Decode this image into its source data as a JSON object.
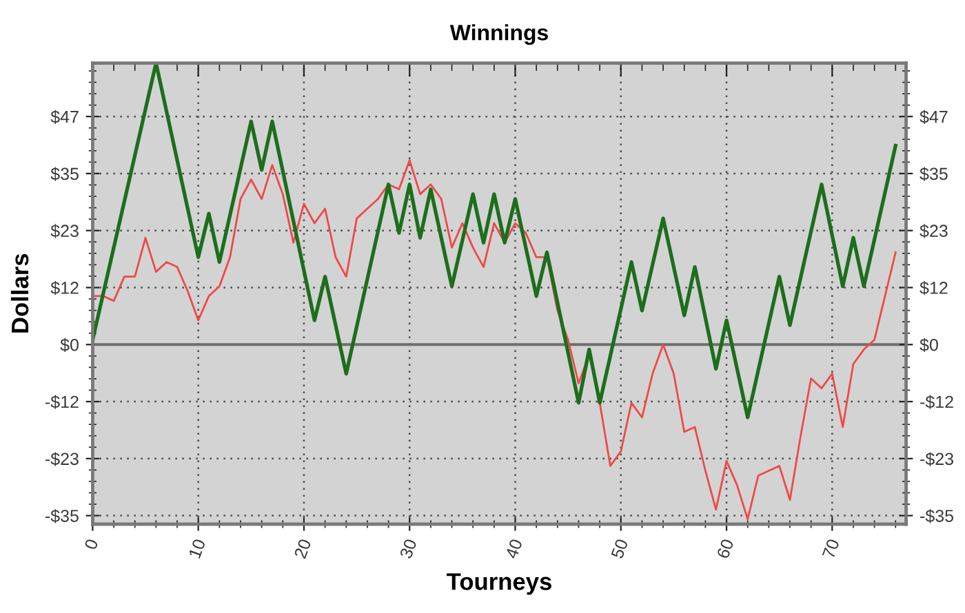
{
  "chart_data": {
    "type": "line",
    "title": "Winnings",
    "xlabel": "Tourneys",
    "ylabel": "Dollars",
    "xlim": [
      0,
      77
    ],
    "xticks": [
      0,
      10,
      20,
      30,
      40,
      50,
      60,
      70
    ],
    "ylim": [
      -37,
      58
    ],
    "yticks": [
      {
        "value": -35.25,
        "label": "-$35"
      },
      {
        "value": -23.5,
        "label": "-$23"
      },
      {
        "value": -11.75,
        "label": "-$12"
      },
      {
        "value": 0,
        "label": "$0"
      },
      {
        "value": 11.75,
        "label": "$12"
      },
      {
        "value": 23.5,
        "label": "$23"
      },
      {
        "value": 35.25,
        "label": "$35"
      },
      {
        "value": 47,
        "label": "$47"
      }
    ],
    "y2lim": [
      -37,
      58
    ],
    "y2ticks": [
      {
        "value": -35.25,
        "label": "-$35"
      },
      {
        "value": -23.5,
        "label": "-$23"
      },
      {
        "value": -11.75,
        "label": "-$12"
      },
      {
        "value": 0,
        "label": "$0"
      },
      {
        "value": 11.75,
        "label": "$12"
      },
      {
        "value": 23.5,
        "label": "$23"
      },
      {
        "value": 35.25,
        "label": "$35"
      },
      {
        "value": 47,
        "label": "$47"
      }
    ],
    "grid": true,
    "ref_lines": [
      {
        "axis": "y",
        "value": 0,
        "color": "#6e6e6e"
      }
    ],
    "series": [
      {
        "color": "#f04848",
        "x": [
          0,
          1,
          2,
          3,
          4,
          5,
          6,
          7,
          8,
          9,
          10,
          11,
          12,
          13,
          14,
          15,
          16,
          17,
          18,
          19,
          20,
          21,
          22,
          23,
          24,
          25,
          26,
          27,
          28,
          29,
          30,
          31,
          32,
          33,
          34,
          35,
          36,
          37,
          38,
          39,
          40,
          41,
          42,
          43,
          44,
          45,
          46,
          47,
          48,
          49,
          50,
          51,
          52,
          53,
          54,
          55,
          56,
          57,
          58,
          59,
          60,
          61,
          62,
          63,
          64,
          65,
          66,
          67,
          68,
          69,
          70,
          71,
          72,
          73,
          74,
          75,
          76
        ],
        "values": [
          10,
          10,
          9,
          14,
          14,
          22,
          15,
          17,
          16,
          11,
          5,
          10,
          12,
          18,
          30,
          34,
          30,
          37,
          31,
          21,
          29,
          25,
          28,
          18,
          14,
          26,
          28,
          30,
          33,
          32,
          38,
          31,
          33,
          30,
          20,
          25,
          20,
          16,
          25,
          21,
          25,
          23,
          18,
          18,
          7,
          1,
          -8,
          -2,
          -12,
          -25,
          -22,
          -12,
          -15,
          -6,
          0,
          -6,
          -18,
          -17,
          -26,
          -34,
          -24,
          -29,
          -36,
          -27,
          -26,
          -25,
          -32,
          -19,
          -7,
          -9,
          -6,
          -17,
          -4,
          -1,
          1,
          10,
          19
        ]
      },
      {
        "color": "#1c6e1c",
        "x": [
          0,
          6,
          10,
          11,
          12,
          15,
          16,
          17,
          21,
          22,
          24,
          28,
          29,
          30,
          31,
          32,
          34,
          36,
          37,
          38,
          39,
          40,
          42,
          43,
          46,
          47,
          48,
          51,
          52,
          54,
          56,
          57,
          59,
          60,
          62,
          65,
          66,
          69,
          71,
          72,
          73,
          76
        ],
        "values": [
          1,
          58,
          18,
          27,
          17,
          46,
          36,
          46,
          5,
          14,
          -6,
          33,
          23,
          33,
          22,
          32,
          12,
          31,
          21,
          31,
          21,
          30,
          10,
          19,
          -12,
          -1,
          -12,
          17,
          7,
          26,
          6,
          16,
          -5,
          5,
          -15,
          14,
          4,
          33,
          12,
          22,
          12,
          41
        ]
      }
    ]
  }
}
